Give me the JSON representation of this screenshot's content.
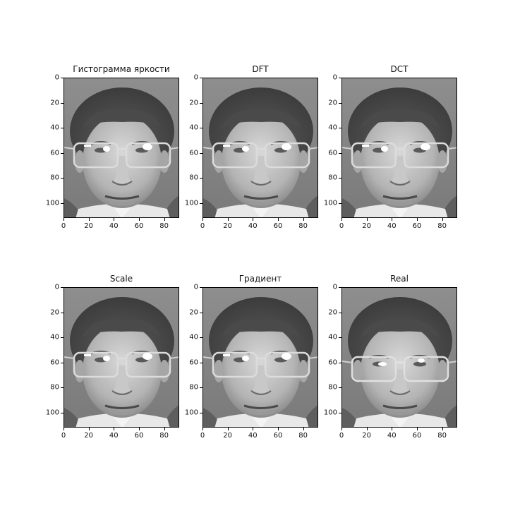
{
  "panels": [
    {
      "title": "Гистограмма яркости",
      "variant": "reconstructed"
    },
    {
      "title": "DFT",
      "variant": "reconstructed"
    },
    {
      "title": "DCT",
      "variant": "reconstructed"
    },
    {
      "title": "Scale",
      "variant": "reconstructed"
    },
    {
      "title": "Градиент",
      "variant": "reconstructed"
    },
    {
      "title": "Real",
      "variant": "original"
    }
  ],
  "axes": {
    "y_ticks": [
      "0",
      "20",
      "40",
      "60",
      "80",
      "100"
    ],
    "x_ticks": [
      "0",
      "20",
      "40",
      "60",
      "80"
    ],
    "y_values": [
      0,
      20,
      40,
      60,
      80,
      100
    ],
    "x_values": [
      0,
      20,
      40,
      60,
      80
    ],
    "x_range": [
      0,
      92
    ],
    "y_range": [
      0,
      112
    ]
  },
  "image": {
    "colormap": "grayscale",
    "subject": "face-with-glasses"
  }
}
